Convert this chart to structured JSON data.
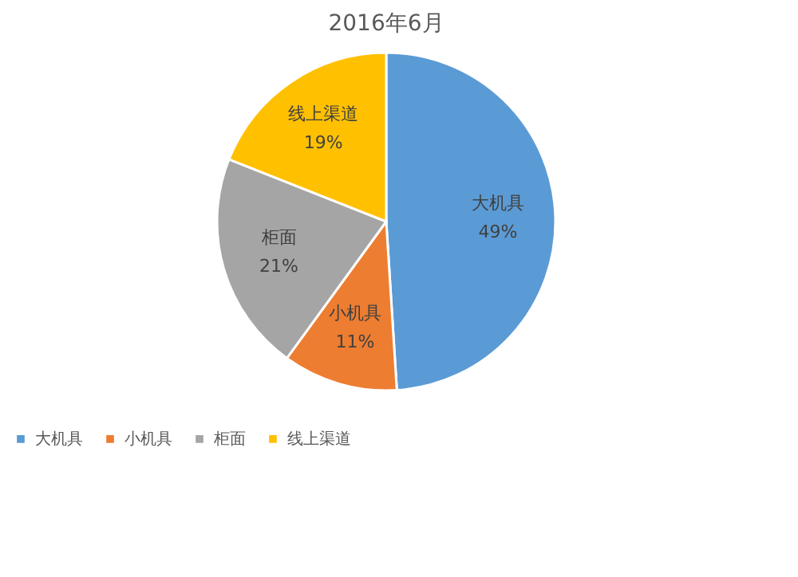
{
  "chart_data": {
    "type": "pie",
    "title": "2016年6月",
    "categories": [
      "大机具",
      "小机具",
      "柜面",
      "线上渠道"
    ],
    "values": [
      49,
      11,
      21,
      19
    ],
    "value_labels": [
      "49%",
      "11%",
      "21%",
      "19%"
    ],
    "colors": [
      "#5b9bd5",
      "#ed7d31",
      "#a5a5a5",
      "#ffc000"
    ],
    "legend": "bottom"
  }
}
